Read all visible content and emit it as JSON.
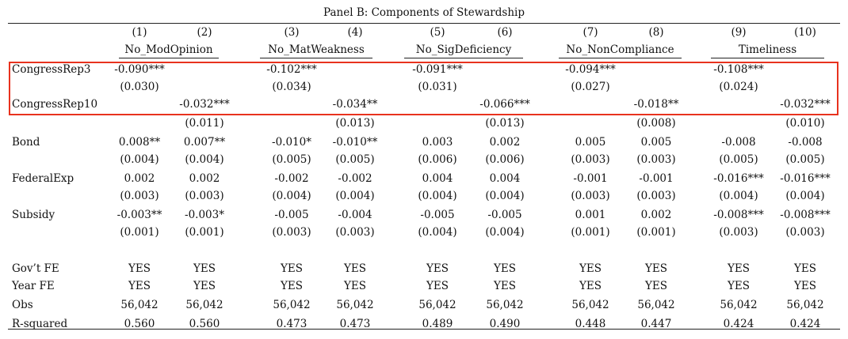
{
  "panel_title": "Panel B: Components of Stewardship",
  "column_numbers": [
    "(1)",
    "(2)",
    "(3)",
    "(4)",
    "(5)",
    "(6)",
    "(7)",
    "(8)",
    "(9)",
    "(10)"
  ],
  "groups": [
    "No_ModOpinion",
    "No_MatWeakness",
    "No_SigDeficiency",
    "No_NonCompliance",
    "Timeliness"
  ],
  "rows": [
    {
      "label": "CongressRep3",
      "cells": [
        "-0.090***",
        "",
        "-0.102***",
        "",
        "-0.091***",
        "",
        "-0.094***",
        "",
        "-0.108***",
        ""
      ]
    },
    {
      "label": "",
      "cells": [
        "(0.030)",
        "",
        "(0.034)",
        "",
        "(0.031)",
        "",
        "(0.027)",
        "",
        "(0.024)",
        ""
      ]
    },
    {
      "label": "CongressRep10",
      "cells": [
        "",
        "-0.032***",
        "",
        "-0.034**",
        "",
        "-0.066***",
        "",
        "-0.018**",
        "",
        "-0.032***"
      ]
    },
    {
      "label": "",
      "cells": [
        "",
        "(0.011)",
        "",
        "(0.013)",
        "",
        "(0.013)",
        "",
        "(0.008)",
        "",
        "(0.010)"
      ]
    },
    {
      "label": "Bond",
      "cells": [
        "0.008**",
        "0.007**",
        "-0.010*",
        "-0.010**",
        "0.003",
        "0.002",
        "0.005",
        "0.005",
        "-0.008",
        "-0.008"
      ]
    },
    {
      "label": "",
      "cells": [
        "(0.004)",
        "(0.004)",
        "(0.005)",
        "(0.005)",
        "(0.006)",
        "(0.006)",
        "(0.003)",
        "(0.003)",
        "(0.005)",
        "(0.005)"
      ]
    },
    {
      "label": "FederalExp",
      "cells": [
        "0.002",
        "0.002",
        "-0.002",
        "-0.002",
        "0.004",
        "0.004",
        "-0.001",
        "-0.001",
        "-0.016***",
        "-0.016***"
      ]
    },
    {
      "label": "",
      "cells": [
        "(0.003)",
        "(0.003)",
        "(0.004)",
        "(0.004)",
        "(0.004)",
        "(0.004)",
        "(0.003)",
        "(0.003)",
        "(0.004)",
        "(0.004)"
      ]
    },
    {
      "label": "Subsidy",
      "cells": [
        "-0.003**",
        "-0.003*",
        "-0.005",
        "-0.004",
        "-0.005",
        "-0.005",
        "0.001",
        "0.002",
        "-0.008***",
        "-0.008***"
      ]
    },
    {
      "label": "",
      "cells": [
        "(0.001)",
        "(0.001)",
        "(0.003)",
        "(0.003)",
        "(0.004)",
        "(0.004)",
        "(0.001)",
        "(0.001)",
        "(0.003)",
        "(0.003)"
      ]
    },
    {
      "label": "Gov’t FE",
      "cells": [
        "YES",
        "YES",
        "YES",
        "YES",
        "YES",
        "YES",
        "YES",
        "YES",
        "YES",
        "YES"
      ]
    },
    {
      "label": "Year FE",
      "cells": [
        "YES",
        "YES",
        "YES",
        "YES",
        "YES",
        "YES",
        "YES",
        "YES",
        "YES",
        "YES"
      ]
    },
    {
      "label": "Obs",
      "cells": [
        "56,042",
        "56,042",
        "56,042",
        "56,042",
        "56,042",
        "56,042",
        "56,042",
        "56,042",
        "56,042",
        "56,042"
      ]
    },
    {
      "label": "R-squared",
      "cells": [
        "0.560",
        "0.560",
        "0.473",
        "0.473",
        "0.489",
        "0.490",
        "0.448",
        "0.447",
        "0.424",
        "0.424"
      ]
    }
  ],
  "highlight_color": "#e8321e"
}
